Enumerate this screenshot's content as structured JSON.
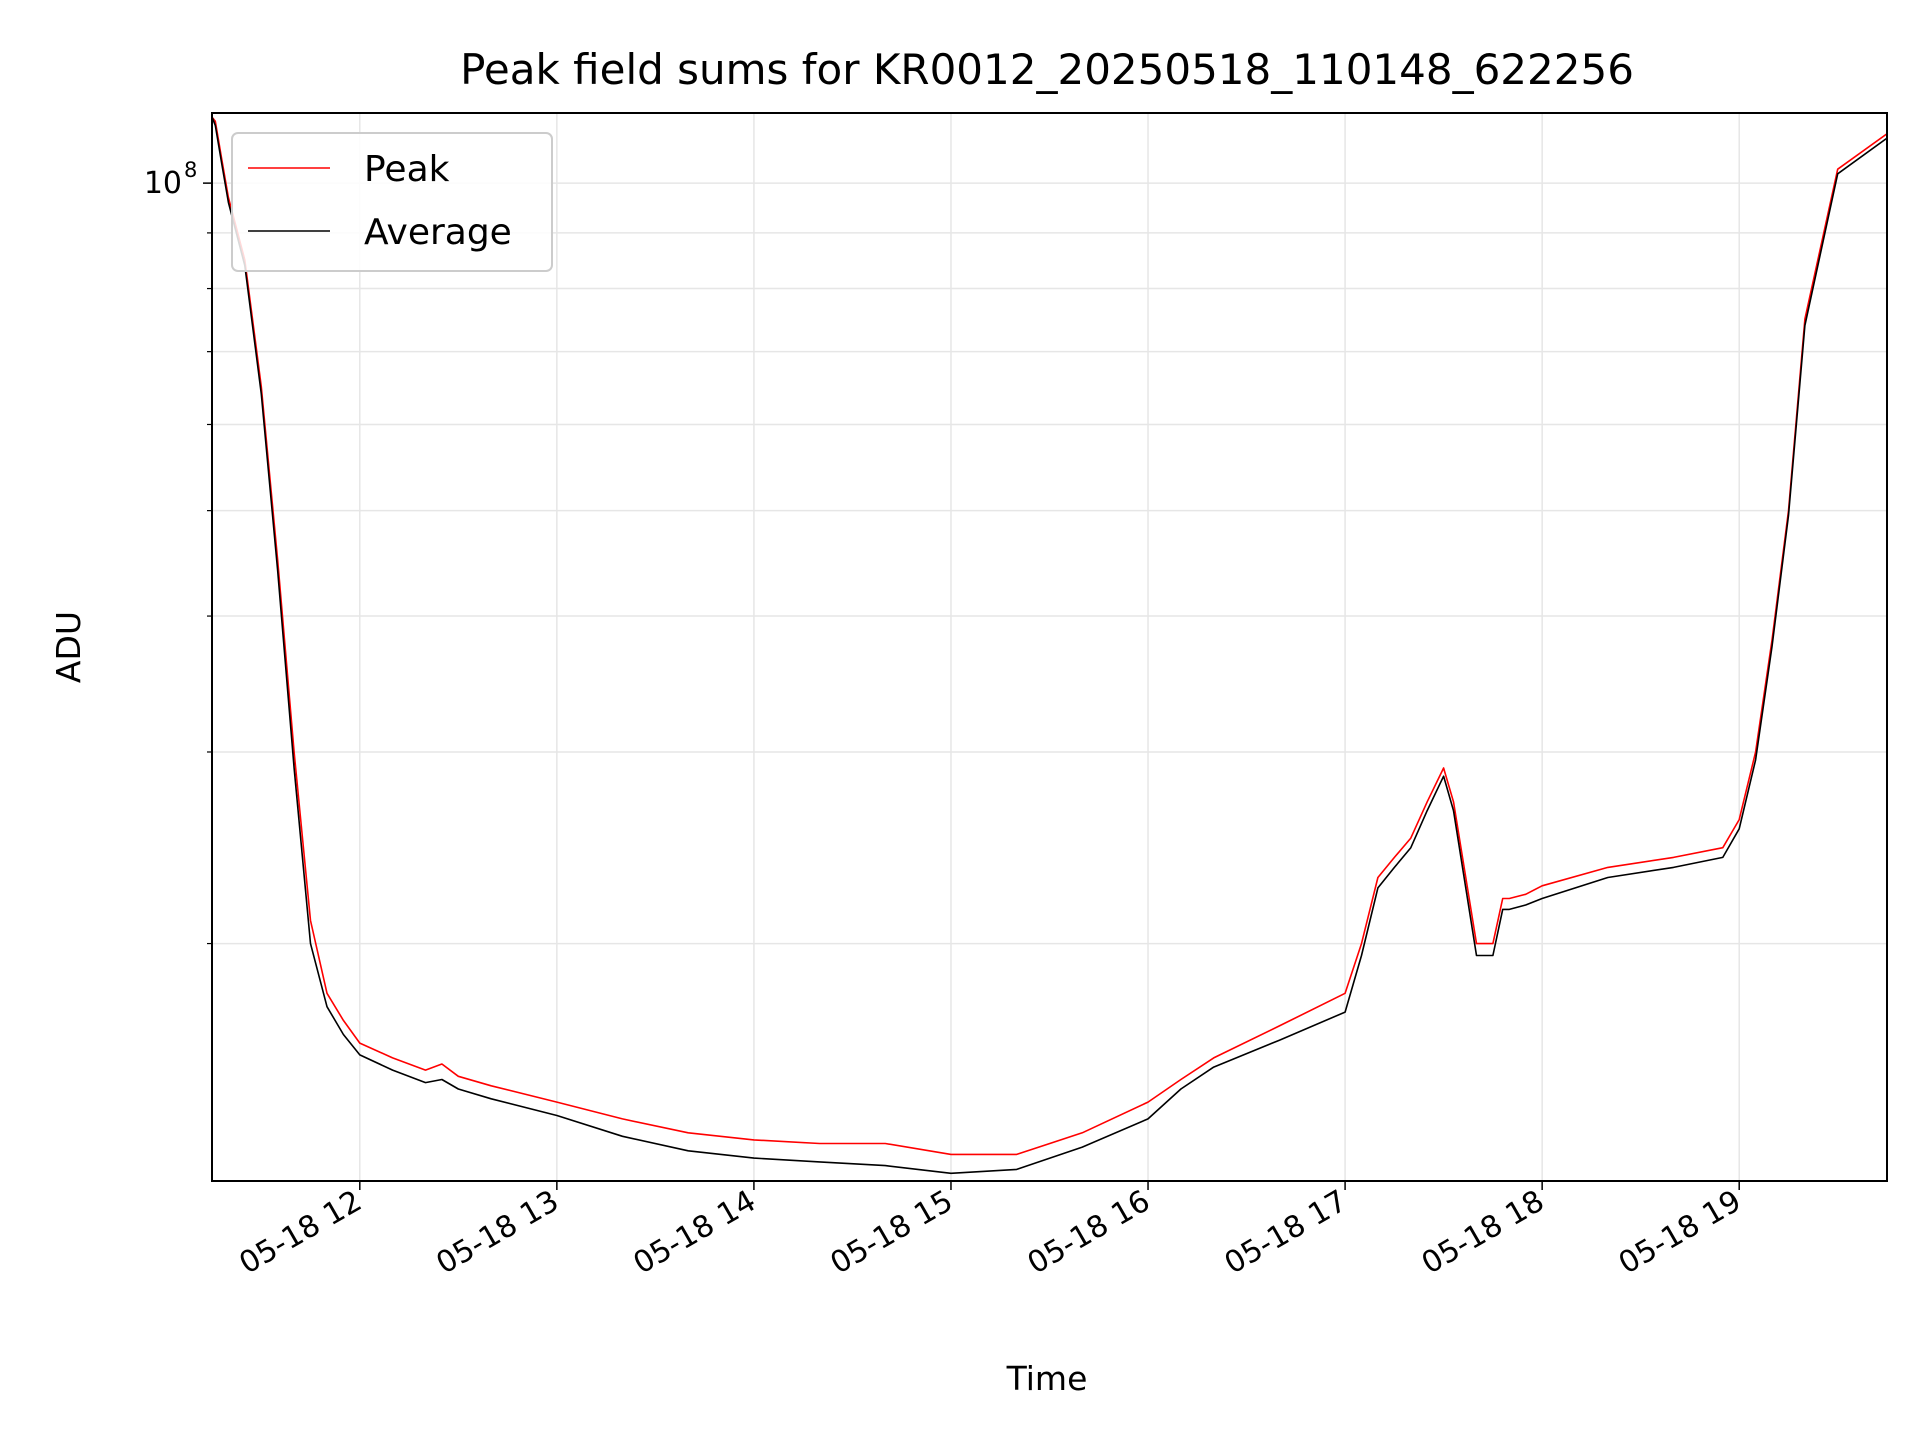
{
  "chart_data": {
    "type": "line",
    "title": "Peak field sums for KR0012_20250518_110148_622256",
    "xlabel": "Time",
    "ylabel": "ADU",
    "x_scale": "time",
    "y_scale": "log",
    "xlim": [
      "05-18 11:15",
      "05-18 19:45"
    ],
    "ylim": [
      12100000,
      116000000
    ],
    "x_tick_labels": [
      "05-18 12",
      "05-18 13",
      "05-18 14",
      "05-18 15",
      "05-18 16",
      "05-18 17",
      "05-18 18",
      "05-18 19"
    ],
    "y_tick_label": {
      "base": "10",
      "exponent": "8"
    },
    "grid": true,
    "legend_position": "upper left",
    "colors": {
      "peak": "#ff0000",
      "average": "#000000"
    },
    "series": [
      {
        "name": "Peak",
        "color": "#ff0000",
        "x": [
          "05-18 11:15",
          "05-18 11:16",
          "05-18 11:18",
          "05-18 11:20",
          "05-18 11:25",
          "05-18 11:30",
          "05-18 11:35",
          "05-18 11:40",
          "05-18 11:45",
          "05-18 11:50",
          "05-18 11:55",
          "05-18 12:00",
          "05-18 12:10",
          "05-18 12:20",
          "05-18 12:25",
          "05-18 12:30",
          "05-18 12:40",
          "05-18 13:00",
          "05-18 13:20",
          "05-18 13:40",
          "05-18 14:00",
          "05-18 14:20",
          "05-18 14:40",
          "05-18 15:00",
          "05-18 15:20",
          "05-18 15:40",
          "05-18 16:00",
          "05-18 16:10",
          "05-18 16:20",
          "05-18 16:40",
          "05-18 17:00",
          "05-18 17:05",
          "05-18 17:10",
          "05-18 17:15",
          "05-18 17:20",
          "05-18 17:25",
          "05-18 17:30",
          "05-18 17:33",
          "05-18 17:40",
          "05-18 17:45",
          "05-18 17:48",
          "05-18 17:50",
          "05-18 17:55",
          "05-18 18:00",
          "05-18 18:20",
          "05-18 18:40",
          "05-18 18:55",
          "05-18 19:00",
          "05-18 19:05",
          "05-18 19:10",
          "05-18 19:15",
          "05-18 19:20",
          "05-18 19:30",
          "05-18 19:45"
        ],
        "y": [
          115000000,
          114000000,
          105000000,
          97000000,
          85000000,
          65000000,
          45000000,
          30000000,
          21000000,
          18000000,
          17000000,
          16200000,
          15700000,
          15300000,
          15500000,
          15100000,
          14800000,
          14300000,
          13800000,
          13400000,
          13200000,
          13100000,
          13100000,
          12800000,
          12800000,
          13400000,
          14300000,
          15000000,
          15700000,
          16800000,
          18000000,
          20000000,
          23000000,
          24000000,
          25000000,
          27000000,
          29000000,
          27000000,
          20000000,
          20000000,
          22000000,
          22000000,
          22200000,
          22600000,
          23500000,
          24000000,
          24500000,
          26000000,
          30000000,
          38000000,
          50000000,
          75000000,
          103000000,
          111000000
        ]
      },
      {
        "name": "Average",
        "color": "#000000",
        "x": [
          "05-18 11:15",
          "05-18 11:16",
          "05-18 11:18",
          "05-18 11:20",
          "05-18 11:25",
          "05-18 11:30",
          "05-18 11:35",
          "05-18 11:40",
          "05-18 11:45",
          "05-18 11:50",
          "05-18 11:55",
          "05-18 12:00",
          "05-18 12:10",
          "05-18 12:20",
          "05-18 12:25",
          "05-18 12:30",
          "05-18 12:40",
          "05-18 13:00",
          "05-18 13:20",
          "05-18 13:40",
          "05-18 14:00",
          "05-18 14:20",
          "05-18 14:40",
          "05-18 15:00",
          "05-18 15:20",
          "05-18 15:40",
          "05-18 16:00",
          "05-18 16:10",
          "05-18 16:20",
          "05-18 16:40",
          "05-18 17:00",
          "05-18 17:05",
          "05-18 17:10",
          "05-18 17:15",
          "05-18 17:20",
          "05-18 17:25",
          "05-18 17:30",
          "05-18 17:33",
          "05-18 17:40",
          "05-18 17:45",
          "05-18 17:48",
          "05-18 17:50",
          "05-18 17:55",
          "05-18 18:00",
          "05-18 18:20",
          "05-18 18:40",
          "05-18 18:55",
          "05-18 19:00",
          "05-18 19:05",
          "05-18 19:10",
          "05-18 19:15",
          "05-18 19:20",
          "05-18 19:30",
          "05-18 19:45"
        ],
        "y": [
          115000000,
          113000000,
          104000000,
          96000000,
          84000000,
          64000000,
          44000000,
          29000000,
          20000000,
          17500000,
          16500000,
          15800000,
          15300000,
          14900000,
          15000000,
          14700000,
          14400000,
          13900000,
          13300000,
          12900000,
          12700000,
          12600000,
          12500000,
          12300000,
          12400000,
          13000000,
          13800000,
          14700000,
          15400000,
          16300000,
          17300000,
          19500000,
          22500000,
          23500000,
          24500000,
          26500000,
          28500000,
          26500000,
          19500000,
          19500000,
          21500000,
          21500000,
          21700000,
          22000000,
          23000000,
          23500000,
          24000000,
          25500000,
          29500000,
          37500000,
          49500000,
          74000000,
          102000000,
          110000000
        ]
      }
    ]
  }
}
